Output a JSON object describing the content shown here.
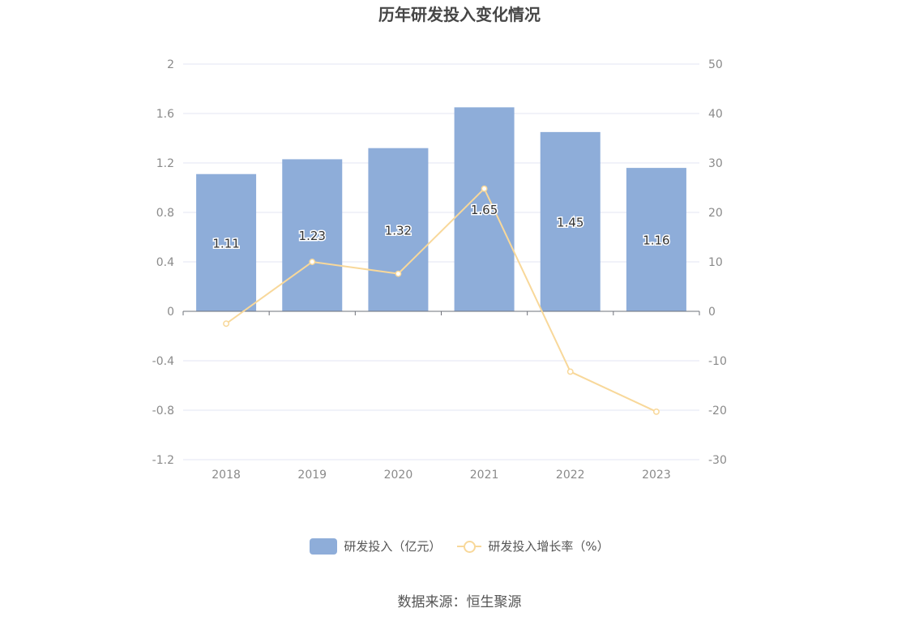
{
  "chart_data": {
    "type": "bar",
    "title": "历年研发投入变化情况",
    "categories": [
      "2018",
      "2019",
      "2020",
      "2021",
      "2022",
      "2023"
    ],
    "series": [
      {
        "name": "研发投入（亿元）",
        "type": "bar",
        "axis": "left",
        "values": [
          1.11,
          1.23,
          1.32,
          1.65,
          1.45,
          1.16
        ],
        "data_labels": [
          "1.11",
          "1.23",
          "1.32",
          "1.65",
          "1.45",
          "1.16"
        ],
        "color": "#8eadd9"
      },
      {
        "name": "研发投入增长率（%）",
        "type": "line",
        "axis": "right",
        "values": [
          -2.5,
          10.0,
          7.6,
          24.8,
          -12.2,
          -20.3
        ],
        "color": "#f8d89a"
      }
    ],
    "y_left": {
      "ylim": [
        -1.2,
        2
      ],
      "ticks": [
        2,
        1.6,
        1.2,
        0.8,
        0.4,
        0,
        -0.4,
        -0.8,
        -1.2
      ],
      "tick_labels": [
        "2",
        "1.6",
        "1.2",
        "0.8",
        "0.4",
        "0",
        "-0.4",
        "-0.8",
        "-1.2"
      ]
    },
    "y_right": {
      "ylim": [
        -30,
        50
      ],
      "ticks": [
        50,
        40,
        30,
        20,
        10,
        0,
        -10,
        -20,
        -30
      ],
      "tick_labels": [
        "50",
        "40",
        "30",
        "20",
        "10",
        "0",
        "-10",
        "-20",
        "-30"
      ]
    },
    "grid": true,
    "legend_position": "bottom-center"
  },
  "source_text": "数据来源：恒生聚源"
}
